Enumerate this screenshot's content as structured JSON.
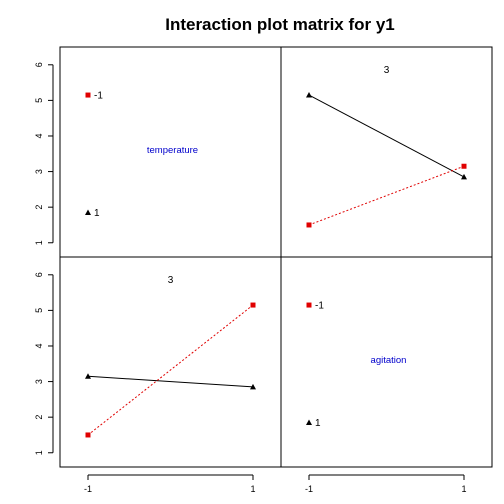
{
  "chart_data": {
    "type": "line",
    "title": "Interaction plot matrix for y1",
    "x_levels": [
      -1,
      1
    ],
    "x_tick_labels": [
      "-1",
      "1"
    ],
    "y_ticks": [
      1,
      2,
      3,
      4,
      5,
      6
    ],
    "ylim": [
      0.6,
      6.5
    ],
    "colors": {
      "level_low": "#e00000",
      "level_high": "#000000",
      "factor_label": "#0000cc",
      "border": "#000000"
    },
    "panels": [
      {
        "id": "r1c1",
        "kind": "label",
        "factor": "temperature",
        "level_markers": [
          {
            "label": "-1",
            "y": 5.15,
            "color": "#e00000",
            "marker": "square"
          },
          {
            "label": "1",
            "y": 1.85,
            "color": "#000000",
            "marker": "triangle"
          }
        ]
      },
      {
        "id": "r1c2",
        "kind": "interaction",
        "annotation": "3",
        "series": [
          {
            "name": "",
            "color": "#000000",
            "marker": "triangle",
            "dash": false,
            "x": [
              -1,
              1
            ],
            "y": [
              5.15,
              2.85
            ]
          },
          {
            "name": "",
            "color": "#e00000",
            "marker": "square",
            "dash": true,
            "x": [
              -1,
              1
            ],
            "y": [
              1.5,
              3.15
            ]
          }
        ]
      },
      {
        "id": "r2c1",
        "kind": "interaction",
        "annotation": "3",
        "series": [
          {
            "name": "",
            "color": "#000000",
            "marker": "triangle",
            "dash": false,
            "x": [
              -1,
              1
            ],
            "y": [
              3.15,
              2.85
            ]
          },
          {
            "name": "",
            "color": "#e00000",
            "marker": "square",
            "dash": true,
            "x": [
              -1,
              1
            ],
            "y": [
              1.5,
              5.15
            ]
          }
        ]
      },
      {
        "id": "r2c2",
        "kind": "label",
        "factor": "agitation",
        "level_markers": [
          {
            "label": "-1",
            "y": 5.15,
            "color": "#e00000",
            "marker": "square"
          },
          {
            "label": "1",
            "y": 1.85,
            "color": "#000000",
            "marker": "triangle"
          }
        ]
      }
    ]
  }
}
